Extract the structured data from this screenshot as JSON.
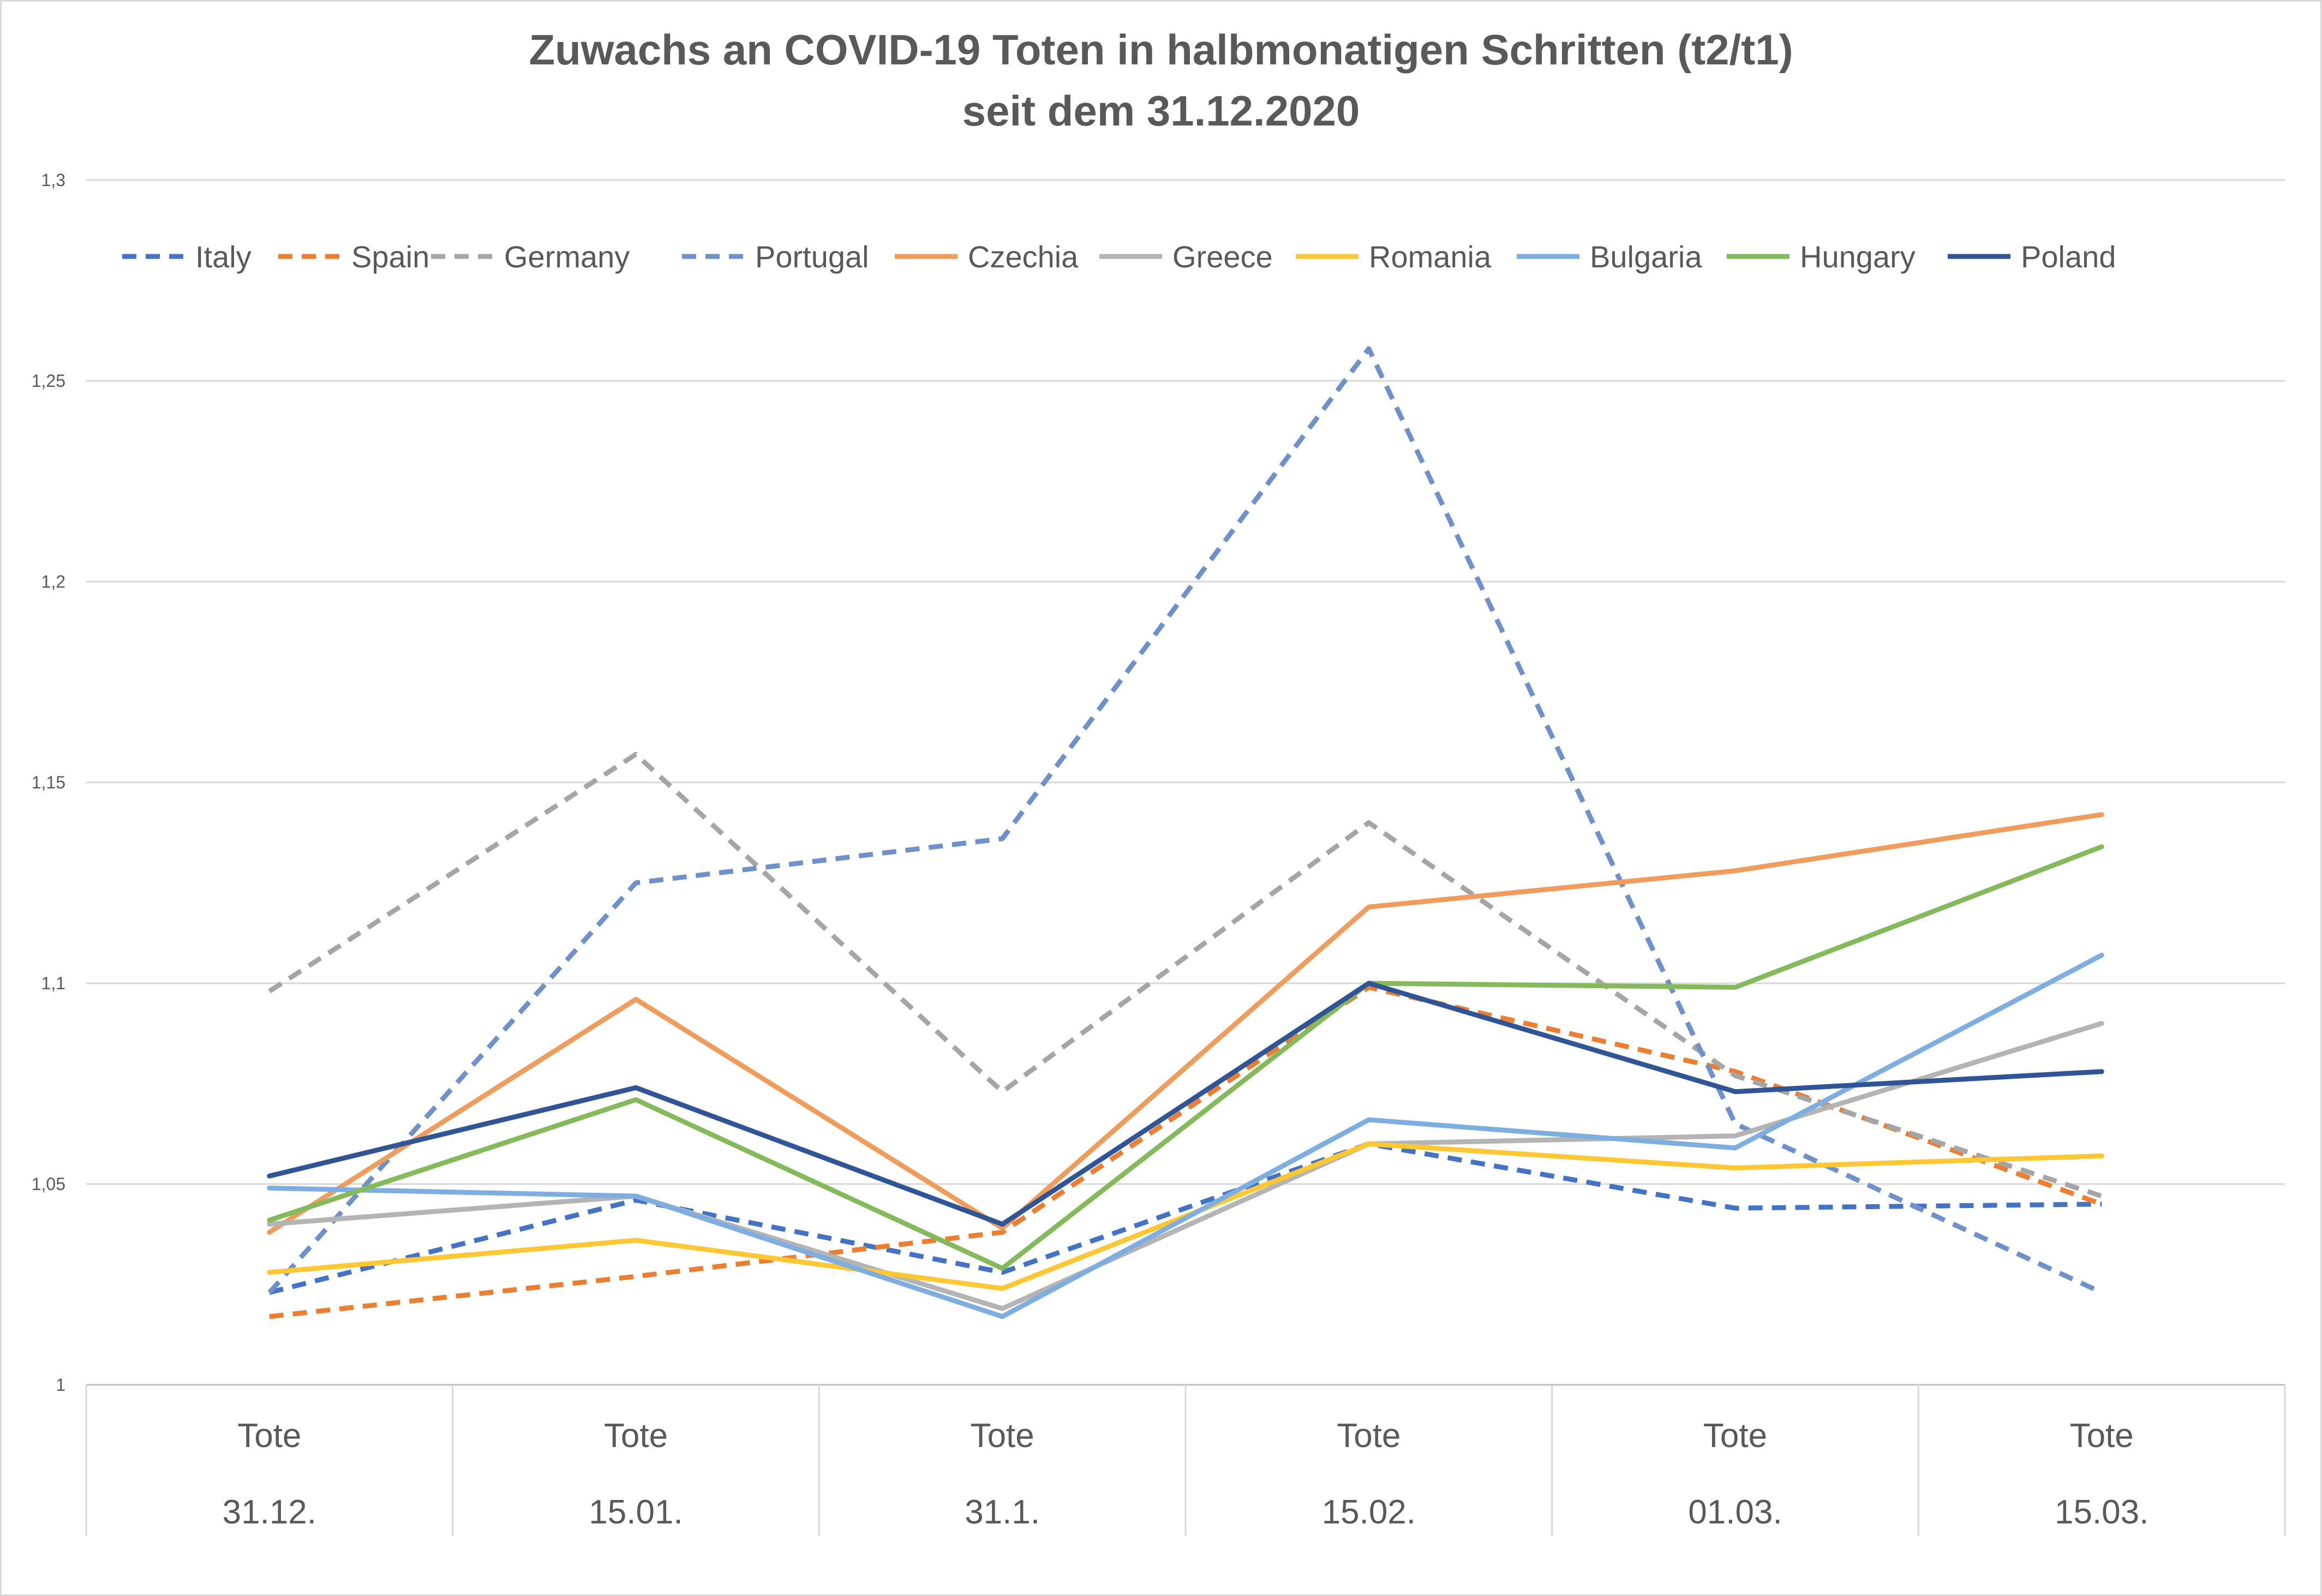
{
  "chart_data": {
    "type": "line",
    "title_lines": [
      "Zuwachs an COVID-19 Toten in halbmonatigen Schritten (t2/t1)",
      "seit dem 31.12.2020"
    ],
    "categories": [
      {
        "line1": "Tote",
        "line2": "31.12."
      },
      {
        "line1": "Tote",
        "line2": "15.01."
      },
      {
        "line1": "Tote",
        "line2": "31.1."
      },
      {
        "line1": "Tote",
        "line2": "15.02."
      },
      {
        "line1": "Tote",
        "line2": "01.03."
      },
      {
        "line1": "Tote",
        "line2": "15.03."
      }
    ],
    "ylim": [
      1,
      1.3
    ],
    "yticks": [
      1,
      1.05,
      1.1,
      1.15,
      1.2,
      1.25,
      1.3
    ],
    "ytick_labels": [
      "1",
      "1,05",
      "1,1",
      "1,15",
      "1,2",
      "1,25",
      "1,3"
    ],
    "grid": true,
    "legend_position": "top",
    "series": [
      {
        "name": "Italy",
        "color": "#4472C4",
        "dashed": true,
        "values": [
          1.023,
          1.046,
          1.028,
          1.06,
          1.044,
          1.045
        ]
      },
      {
        "name": "Spain",
        "color": "#ED7D31",
        "dashed": true,
        "values": [
          1.017,
          1.027,
          1.038,
          1.099,
          1.078,
          1.045
        ]
      },
      {
        "name": "Germany",
        "color": "#A5A5A5",
        "dashed": true,
        "values": [
          1.098,
          1.157,
          1.073,
          1.14,
          1.077,
          1.047
        ]
      },
      {
        "name": "Portugal",
        "color": "#6F91CB",
        "dashed": true,
        "values": [
          1.023,
          1.125,
          1.136,
          1.258,
          1.065,
          1.023
        ]
      },
      {
        "name": "Czechia",
        "color": "#F09C5C",
        "dashed": false,
        "values": [
          1.038,
          1.096,
          1.039,
          1.119,
          1.128,
          1.142
        ]
      },
      {
        "name": "Greece",
        "color": "#B4B4B4",
        "dashed": false,
        "values": [
          1.04,
          1.047,
          1.019,
          1.06,
          1.062,
          1.09
        ]
      },
      {
        "name": "Romania",
        "color": "#FFC832",
        "dashed": false,
        "values": [
          1.028,
          1.036,
          1.024,
          1.06,
          1.054,
          1.057
        ]
      },
      {
        "name": "Bulgaria",
        "color": "#7EAEDF",
        "dashed": false,
        "values": [
          1.049,
          1.047,
          1.017,
          1.066,
          1.059,
          1.107
        ]
      },
      {
        "name": "Hungary",
        "color": "#84BA5B",
        "dashed": false,
        "values": [
          1.041,
          1.071,
          1.029,
          1.1,
          1.099,
          1.134
        ]
      },
      {
        "name": "Poland",
        "color": "#2F5597",
        "dashed": false,
        "values": [
          1.052,
          1.074,
          1.04,
          1.1,
          1.073,
          1.078
        ]
      }
    ]
  }
}
